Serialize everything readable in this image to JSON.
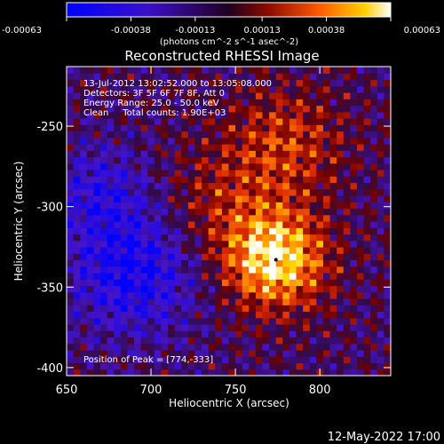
{
  "chart_data": {
    "type": "heatmap",
    "title": "Reconstructed RHESSI Image",
    "xlabel": "Heliocentric X (arcsec)",
    "ylabel": "Heliocentric Y (arcsec)",
    "xlim": [
      650,
      842
    ],
    "ylim": [
      -405,
      -213
    ],
    "x_ticks": [
      "650",
      "700",
      "750",
      "800"
    ],
    "x_tick_values": [
      650,
      700,
      750,
      800
    ],
    "y_ticks": [
      "-250",
      "-300",
      "-350",
      "-400"
    ],
    "y_tick_values": [
      -250,
      -300,
      -350,
      -400
    ],
    "colorbar": {
      "ticks": [
        "-0.00063",
        "-0.00038",
        "-0.00013",
        "0.00013",
        "0.00038",
        "0.00063"
      ],
      "tick_values": [
        -0.00063,
        -0.00038,
        -0.00013,
        0.00013,
        0.00038,
        0.00063
      ],
      "range": [
        -0.00063,
        0.00063
      ],
      "unit_label": "(photons cm^-2 s^-1 asec^-2)"
    },
    "annotations": [
      "13-Jul-2012 13:02:52.000 to 13:05:08.000",
      "Detectors: 3F 5F 6F 7F 8F, Att 0",
      "Energy Range: 25.0 - 50.0 keV",
      "Clean     Total counts: 1.90E+03"
    ],
    "peak_label": "Position of Peak = [774,-333]",
    "peak": [
      774,
      -333
    ],
    "cell_arcsec": 4
  },
  "footer": {
    "date": "12-May-2022 17:00"
  }
}
